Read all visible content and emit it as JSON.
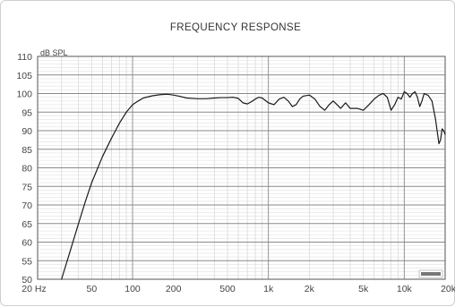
{
  "chart_data": {
    "type": "line",
    "title": "FREQUENCY RESPONSE",
    "y_unit": "dB SPL",
    "x_scale": "log",
    "xlim": [
      20,
      20000
    ],
    "ylim": [
      50,
      110
    ],
    "grid": true,
    "x_ticks": [
      {
        "value": 20,
        "label": "20 Hz"
      },
      {
        "value": 50,
        "label": "50"
      },
      {
        "value": 100,
        "label": "100"
      },
      {
        "value": 200,
        "label": "200"
      },
      {
        "value": 500,
        "label": "500"
      },
      {
        "value": 1000,
        "label": "1k"
      },
      {
        "value": 2000,
        "label": "2k"
      },
      {
        "value": 5000,
        "label": "5k"
      },
      {
        "value": 10000,
        "label": "10k"
      },
      {
        "value": 20000,
        "label": "20k"
      }
    ],
    "y_ticks": [
      50,
      55,
      60,
      65,
      70,
      75,
      80,
      85,
      90,
      95,
      100,
      105,
      110
    ],
    "series": [
      {
        "color": "#1a1a1a",
        "points": [
          [
            30,
            50
          ],
          [
            35,
            58
          ],
          [
            40,
            65
          ],
          [
            45,
            71
          ],
          [
            50,
            76
          ],
          [
            60,
            83
          ],
          [
            70,
            88
          ],
          [
            80,
            92
          ],
          [
            90,
            95
          ],
          [
            100,
            97
          ],
          [
            110,
            98
          ],
          [
            120,
            98.8
          ],
          [
            140,
            99.4
          ],
          [
            160,
            99.7
          ],
          [
            180,
            99.8
          ],
          [
            200,
            99.6
          ],
          [
            220,
            99.3
          ],
          [
            250,
            98.8
          ],
          [
            300,
            98.6
          ],
          [
            350,
            98.6
          ],
          [
            400,
            98.8
          ],
          [
            450,
            98.9
          ],
          [
            500,
            98.9
          ],
          [
            550,
            99.0
          ],
          [
            600,
            98.7
          ],
          [
            650,
            97.5
          ],
          [
            700,
            97.2
          ],
          [
            750,
            97.8
          ],
          [
            800,
            98.5
          ],
          [
            850,
            99.0
          ],
          [
            900,
            98.8
          ],
          [
            1000,
            97.5
          ],
          [
            1100,
            97.0
          ],
          [
            1200,
            98.5
          ],
          [
            1300,
            99.0
          ],
          [
            1400,
            98.0
          ],
          [
            1500,
            96.5
          ],
          [
            1600,
            97.0
          ],
          [
            1700,
            98.5
          ],
          [
            1800,
            99.3
          ],
          [
            2000,
            99.6
          ],
          [
            2200,
            98.5
          ],
          [
            2400,
            96.5
          ],
          [
            2600,
            95.5
          ],
          [
            2800,
            97.0
          ],
          [
            3000,
            98.0
          ],
          [
            3200,
            97.0
          ],
          [
            3400,
            96.0
          ],
          [
            3700,
            97.5
          ],
          [
            4000,
            96.0
          ],
          [
            4500,
            96.0
          ],
          [
            5000,
            95.5
          ],
          [
            5500,
            97.0
          ],
          [
            6000,
            98.5
          ],
          [
            6500,
            99.5
          ],
          [
            7000,
            100.0
          ],
          [
            7500,
            99.0
          ],
          [
            8000,
            95.5
          ],
          [
            8500,
            97.0
          ],
          [
            9000,
            99.0
          ],
          [
            9500,
            98.5
          ],
          [
            10000,
            100.5
          ],
          [
            10500,
            100.0
          ],
          [
            11000,
            99.0
          ],
          [
            11500,
            100.0
          ],
          [
            12000,
            100.5
          ],
          [
            12500,
            99.0
          ],
          [
            13000,
            96.5
          ],
          [
            13500,
            98.0
          ],
          [
            14000,
            100.0
          ],
          [
            15000,
            99.5
          ],
          [
            16000,
            98.0
          ],
          [
            17000,
            93.0
          ],
          [
            18000,
            86.5
          ],
          [
            18500,
            87.5
          ],
          [
            19000,
            90.5
          ],
          [
            19500,
            90.0
          ],
          [
            20000,
            89.0
          ]
        ]
      }
    ]
  }
}
